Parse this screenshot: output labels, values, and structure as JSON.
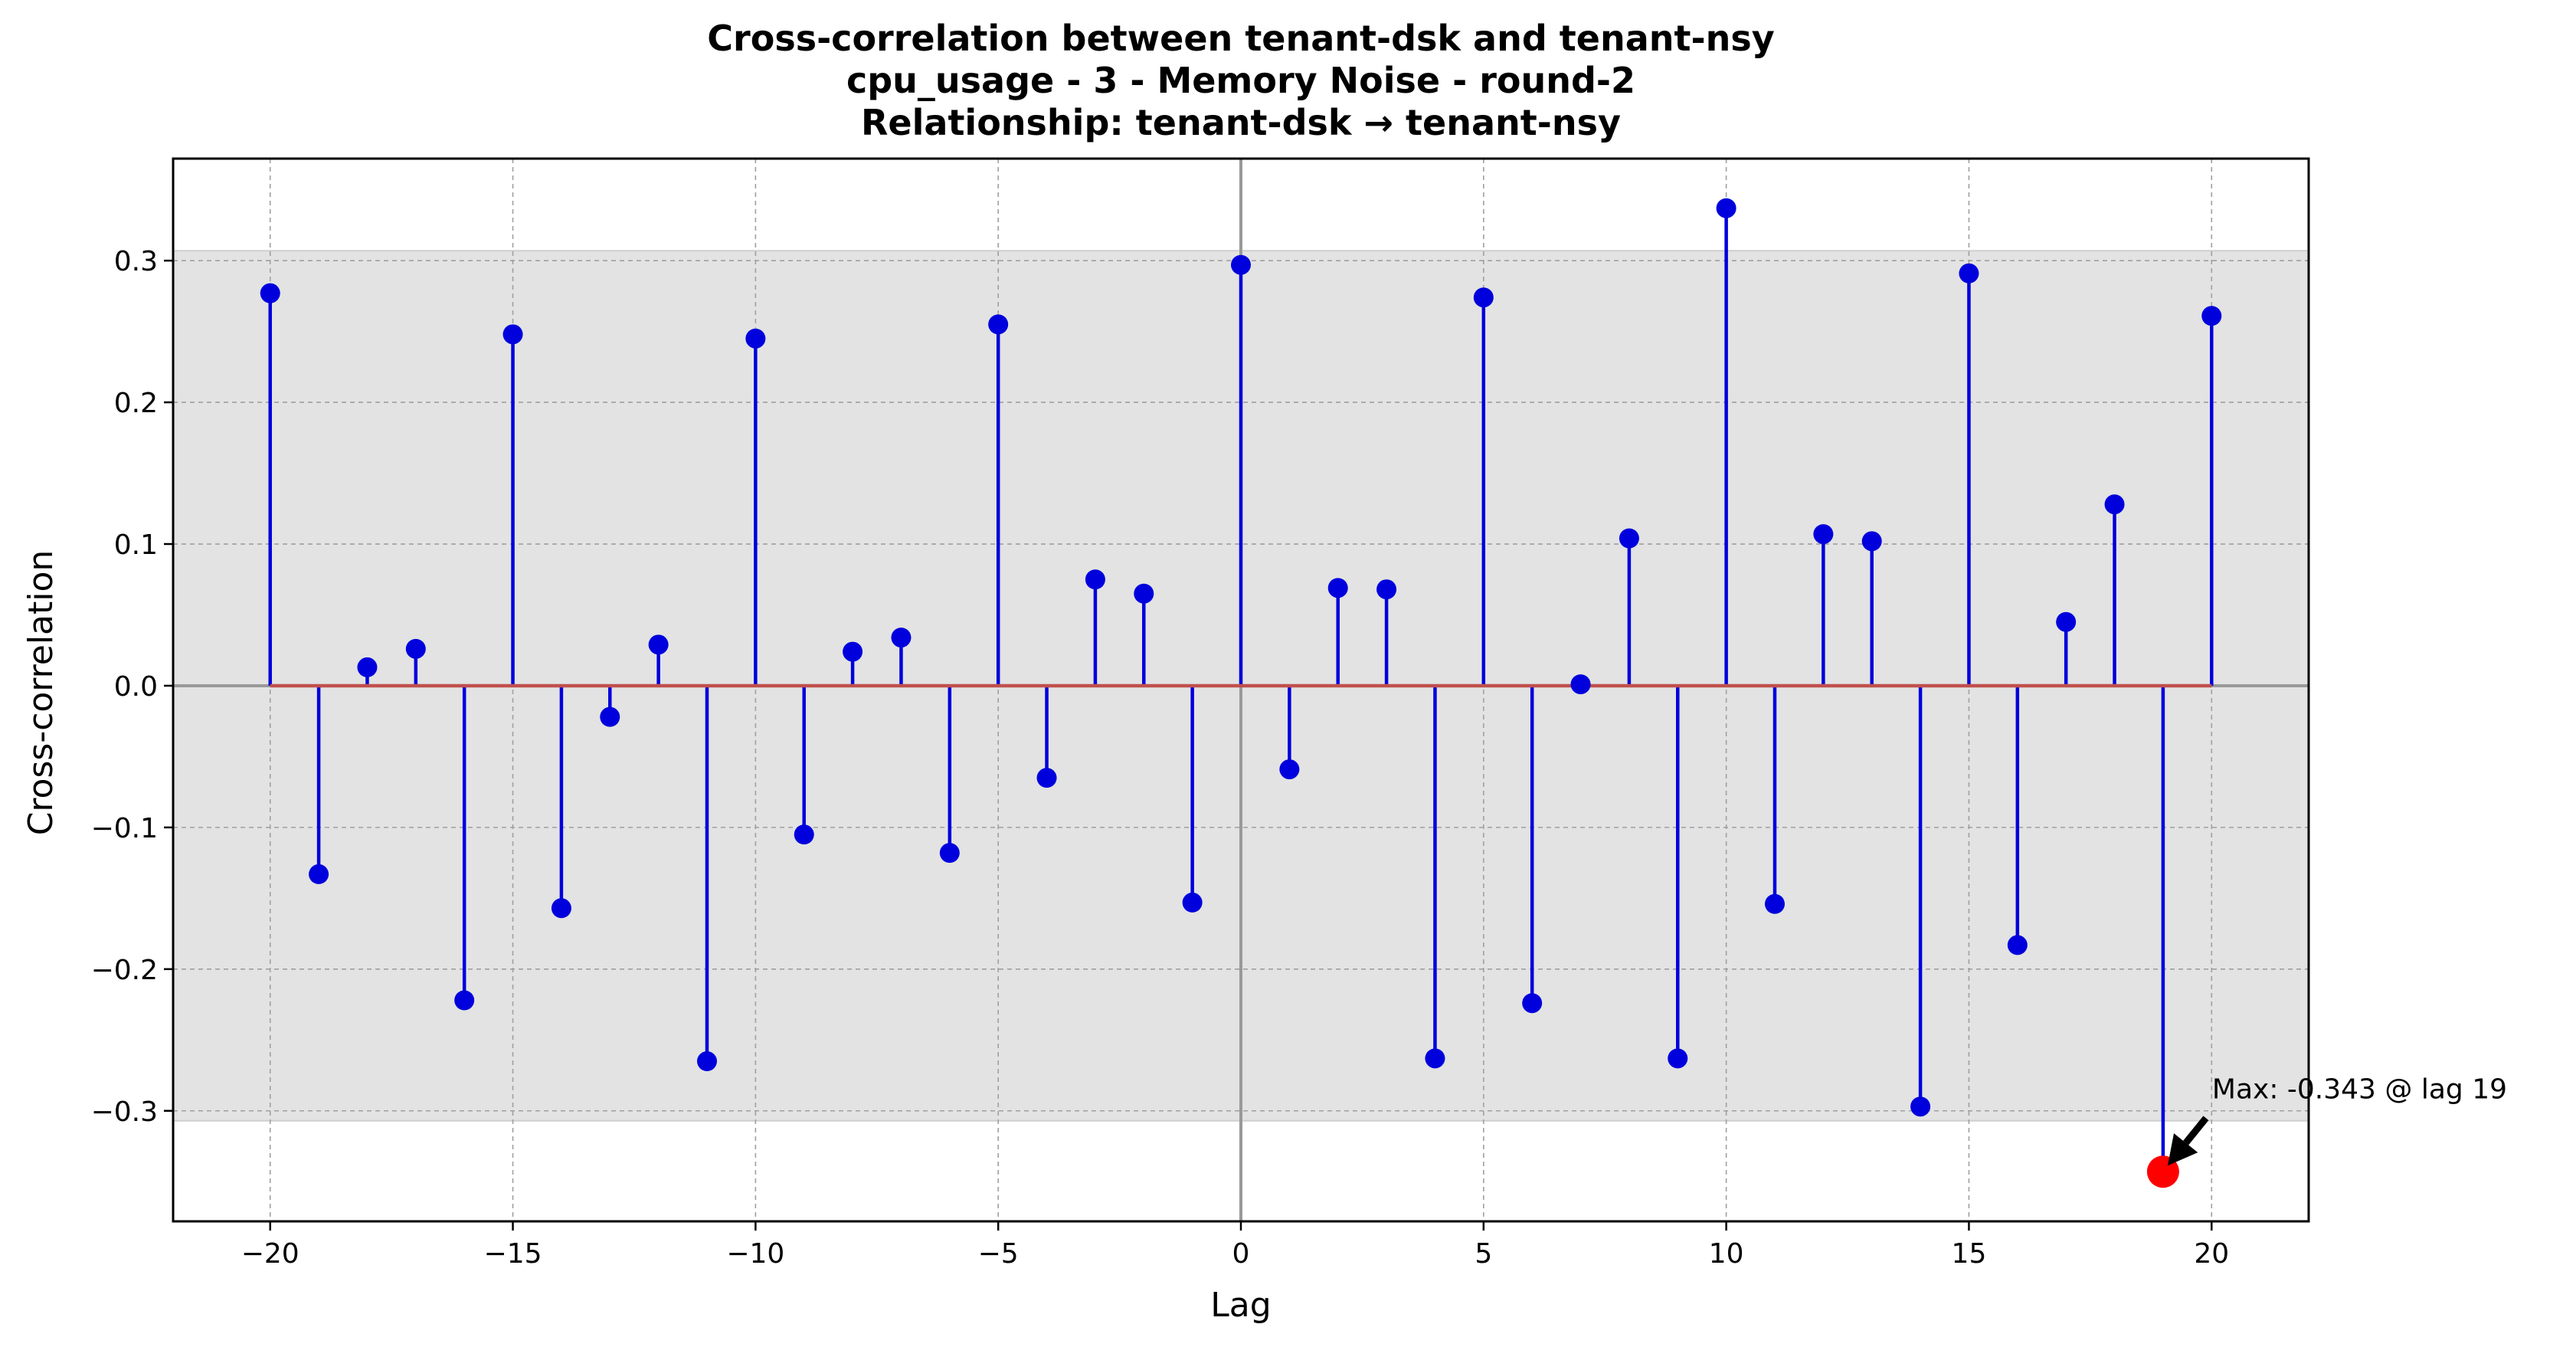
{
  "chart_data": {
    "type": "stem",
    "title_lines": [
      "Cross-correlation between tenant-dsk and tenant-nsy",
      "cpu_usage - 3 - Memory Noise - round-2",
      "Relationship: tenant-dsk → tenant-nsy"
    ],
    "xlabel": "Lag",
    "ylabel": "Cross-correlation",
    "xlim": [
      -22,
      22
    ],
    "ylim": [
      -0.378,
      0.372
    ],
    "x_ticks": [
      -20,
      -15,
      -10,
      -5,
      0,
      5,
      10,
      15,
      20
    ],
    "x_tick_labels": [
      "−20",
      "−15",
      "−10",
      "−5",
      "0",
      "5",
      "10",
      "15",
      "20"
    ],
    "y_ticks": [
      -0.3,
      -0.2,
      -0.1,
      0.0,
      0.1,
      0.2,
      0.3
    ],
    "y_tick_labels": [
      "−0.3",
      "−0.2",
      "−0.1",
      "0.0",
      "0.1",
      "0.2",
      "0.3"
    ],
    "grid": true,
    "confidence_band": [
      -0.307,
      0.307
    ],
    "series": [
      {
        "x": [
          -20,
          -19,
          -18,
          -17,
          -16,
          -15,
          -14,
          -13,
          -12,
          -11,
          -10,
          -9,
          -8,
          -7,
          -6,
          -5,
          -4,
          -3,
          -2,
          -1,
          0,
          1,
          2,
          3,
          4,
          5,
          6,
          7,
          8,
          9,
          10,
          11,
          12,
          13,
          14,
          15,
          16,
          17,
          18,
          19,
          20
        ],
        "values": [
          0.277,
          -0.133,
          0.013,
          0.026,
          -0.222,
          0.248,
          -0.157,
          -0.022,
          0.029,
          -0.265,
          0.245,
          -0.105,
          0.024,
          0.034,
          -0.118,
          0.255,
          -0.065,
          0.075,
          0.065,
          -0.153,
          0.297,
          -0.059,
          0.069,
          0.068,
          -0.263,
          0.274,
          -0.224,
          0.001,
          0.104,
          -0.263,
          0.337,
          -0.154,
          0.107,
          0.102,
          -0.297,
          0.291,
          -0.183,
          0.045,
          0.128,
          -0.343,
          0.261
        ]
      }
    ],
    "max_point": {
      "lag": 19,
      "value": -0.343,
      "label": "Max: -0.343 @ lag 19"
    },
    "colors": {
      "stem": "#0000dd",
      "marker": "#0000dd",
      "baseline": "#c0504d",
      "max_marker": "#ff0000",
      "band": "#e3e3e3",
      "grid": "#a0a0a0",
      "zero_lines": "#999999"
    }
  }
}
